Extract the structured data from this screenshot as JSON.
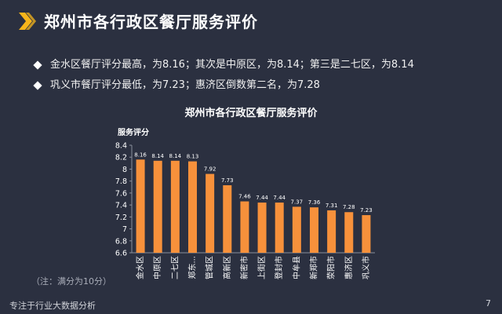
{
  "header": {
    "title": "郑州市各行政区餐厅服务评价",
    "icon": "chevron-double-icon",
    "accent": "#f7b51b"
  },
  "bullets": [
    "金水区餐厅评分最高，为8.16；其次是中原区，为8.14；第三是二七区，为8.14",
    "巩义市餐厅评分最低，为7.23；惠济区倒数第二名，为7.28"
  ],
  "chart_data": {
    "type": "bar",
    "title": "郑州市各行政区餐厅服务评价",
    "ylabel": "服务评分",
    "xlabel": "",
    "ylim": [
      6.6,
      8.4
    ],
    "yticks": [
      "8.4",
      "8.2",
      "8",
      "7.8",
      "7.6",
      "7.4",
      "7.2",
      "7",
      "6.8",
      "6.6"
    ],
    "categories": [
      "金水区",
      "中原区",
      "二七区",
      "郑东...",
      "管城区",
      "高新区",
      "新密市",
      "上街区",
      "登封市",
      "中牟县",
      "新郑市",
      "荥阳市",
      "惠济区",
      "巩义市"
    ],
    "values": [
      8.16,
      8.14,
      8.14,
      8.13,
      7.92,
      7.73,
      7.46,
      7.44,
      7.44,
      7.37,
      7.36,
      7.31,
      7.28,
      7.23
    ],
    "labels": [
      "8.16",
      "8.14",
      "8.14",
      "8.13",
      "7.92",
      "7.73",
      "7.46",
      "7.44",
      "7.44",
      "7.37",
      "7.36",
      "7.31",
      "7.28",
      "7.23"
    ],
    "bar_color": "#f7913b",
    "grid": false
  },
  "footnote": "（注：满分为10分）",
  "footer": {
    "left": "专注于行业大数据分析",
    "page": "7"
  }
}
